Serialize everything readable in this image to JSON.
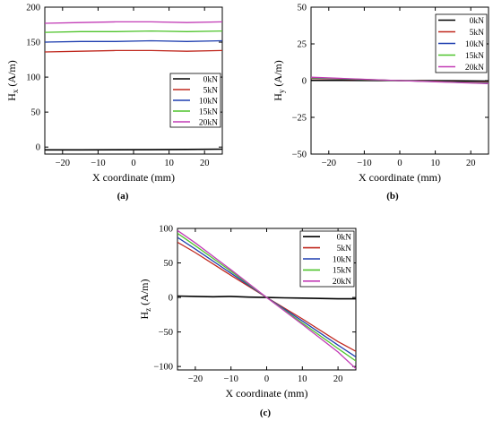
{
  "legend_labels": [
    "0kN",
    "5kN",
    "10kN",
    "15kN",
    "20kN"
  ],
  "colors": [
    "#000000",
    "#c0281e",
    "#1f3fb0",
    "#4fc42c",
    "#c23cb6"
  ],
  "chart_data": [
    {
      "panel_label": "(a)",
      "type": "line",
      "xlabel": "X coordinate (mm)",
      "ylabel_main": "H",
      "ylabel_sub": "x",
      "ylabel_rest": " (A/m)",
      "xlim": [
        -25,
        25
      ],
      "ylim": [
        -10,
        200
      ],
      "xticks": [
        -20,
        -10,
        0,
        10,
        20
      ],
      "yticks": [
        0,
        50,
        100,
        150,
        200
      ],
      "legend_position": "right-middle",
      "series": [
        {
          "name": "0kN",
          "x": [
            -25,
            -15,
            -5,
            5,
            15,
            25
          ],
          "y": [
            -4,
            -4,
            -3.8,
            -3.7,
            -3.4,
            -3
          ]
        },
        {
          "name": "5kN",
          "x": [
            -25,
            -15,
            -5,
            5,
            15,
            25
          ],
          "y": [
            136,
            137,
            138,
            138,
            137,
            138
          ]
        },
        {
          "name": "10kN",
          "x": [
            -25,
            -15,
            -5,
            5,
            15,
            25
          ],
          "y": [
            150,
            151,
            151,
            152,
            151,
            152
          ]
        },
        {
          "name": "15kN",
          "x": [
            -25,
            -15,
            -5,
            5,
            15,
            25
          ],
          "y": [
            164,
            165,
            165,
            166,
            165,
            166
          ]
        },
        {
          "name": "20kN",
          "x": [
            -25,
            -15,
            -5,
            5,
            15,
            25
          ],
          "y": [
            177,
            178,
            179,
            179,
            178,
            179
          ]
        }
      ]
    },
    {
      "panel_label": "(b)",
      "type": "line",
      "xlabel": "X coordinate (mm)",
      "ylabel_main": "H",
      "ylabel_sub": "y",
      "ylabel_rest": " (A/m)",
      "xlim": [
        -25,
        25
      ],
      "ylim": [
        -50,
        50
      ],
      "xticks": [
        -20,
        -10,
        0,
        10,
        20
      ],
      "yticks": [
        -50,
        -25,
        0,
        25,
        50
      ],
      "legend_position": "top-right",
      "series": [
        {
          "name": "0kN",
          "x": [
            -25,
            -10,
            0,
            10,
            25
          ],
          "y": [
            0.2,
            0.1,
            0,
            0,
            -0.3
          ]
        },
        {
          "name": "5kN",
          "x": [
            -25,
            -10,
            0,
            10,
            25
          ],
          "y": [
            1.5,
            0.6,
            0,
            -0.5,
            -1.4
          ]
        },
        {
          "name": "10kN",
          "x": [
            -25,
            -10,
            0,
            10,
            25
          ],
          "y": [
            1.8,
            0.7,
            0,
            -0.6,
            -1.7
          ]
        },
        {
          "name": "15kN",
          "x": [
            -25,
            -10,
            0,
            10,
            25
          ],
          "y": [
            2.0,
            0.8,
            0,
            -0.7,
            -1.9
          ]
        },
        {
          "name": "20kN",
          "x": [
            -25,
            -10,
            0,
            10,
            25
          ],
          "y": [
            2.3,
            0.9,
            0,
            -0.8,
            -2.1
          ]
        }
      ]
    },
    {
      "panel_label": "(c)",
      "type": "line",
      "xlabel": "X coordinate (mm)",
      "ylabel_main": "H",
      "ylabel_sub": "z",
      "ylabel_rest": " (A/m)",
      "xlim": [
        -25,
        25
      ],
      "ylim": [
        -105,
        100
      ],
      "xticks": [
        -20,
        -10,
        0,
        10,
        20
      ],
      "yticks": [
        -100,
        -50,
        0,
        50,
        100
      ],
      "legend_position": "top-right",
      "series": [
        {
          "name": "0kN",
          "x": [
            -25,
            -20,
            -15,
            -10,
            -5,
            0,
            5,
            10,
            15,
            20,
            25
          ],
          "y": [
            2,
            1.5,
            1,
            1.5,
            0.5,
            0,
            -0.5,
            -1,
            -1.5,
            -2,
            -2
          ]
        },
        {
          "name": "5kN",
          "x": [
            -25,
            -20,
            -10,
            0,
            10,
            20,
            25
          ],
          "y": [
            80,
            65,
            32,
            0,
            -31,
            -64,
            -78
          ]
        },
        {
          "name": "10kN",
          "x": [
            -25,
            -20,
            -10,
            0,
            10,
            20,
            25
          ],
          "y": [
            87,
            70,
            35,
            0,
            -34,
            -69,
            -86
          ]
        },
        {
          "name": "15kN",
          "x": [
            -25,
            -20,
            -10,
            0,
            10,
            20,
            25
          ],
          "y": [
            93,
            75,
            38,
            0,
            -37,
            -74,
            -92
          ]
        },
        {
          "name": "20kN",
          "x": [
            -25,
            -20,
            -10,
            0,
            10,
            20,
            25
          ],
          "y": [
            97,
            79,
            40,
            0,
            -39,
            -79,
            -103
          ]
        }
      ]
    }
  ]
}
